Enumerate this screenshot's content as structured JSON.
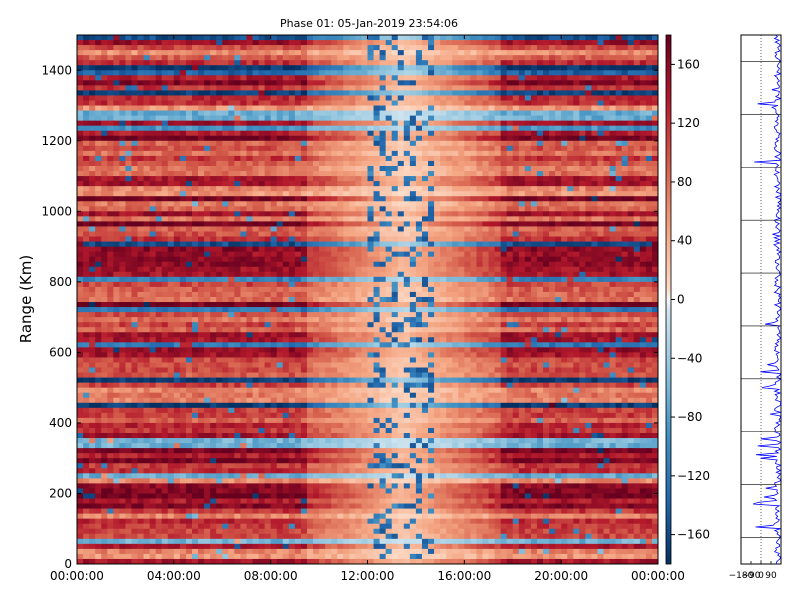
{
  "chart_data": [
    {
      "type": "heatmap",
      "title": "Phase 01: 05-Jan-2019 23:54:06",
      "xlabel": "",
      "ylabel": "Range (Km)",
      "x_ticks": [
        "00:00:00",
        "04:00:00",
        "08:00:00",
        "12:00:00",
        "16:00:00",
        "20:00:00",
        "00:00:00"
      ],
      "x_range": [
        "00:00:00",
        "24:00:00"
      ],
      "y_ticks": [
        0,
        200,
        400,
        600,
        800,
        1000,
        1200,
        1400
      ],
      "ylim": [
        0,
        1500
      ],
      "colorbar": {
        "colormap": "RdBu_r",
        "ticks": [
          160,
          120,
          80,
          40,
          0,
          -40,
          -80,
          -120,
          -160
        ],
        "range": [
          -180,
          180
        ]
      },
      "description_of_pattern": "",
      "low_variance_window_hours": [
        9.5,
        17.5
      ],
      "dense_vertical_bands_hours": [
        12.0,
        14.7
      ]
    },
    {
      "type": "line",
      "title": "",
      "xlabel": "",
      "ylabel": "",
      "x_ticks": [
        "−180",
        "−90",
        "0",
        "90"
      ],
      "xlim": [
        -180,
        180
      ],
      "ylim": [
        0,
        1500
      ],
      "series_color": "#0000ff"
    }
  ]
}
